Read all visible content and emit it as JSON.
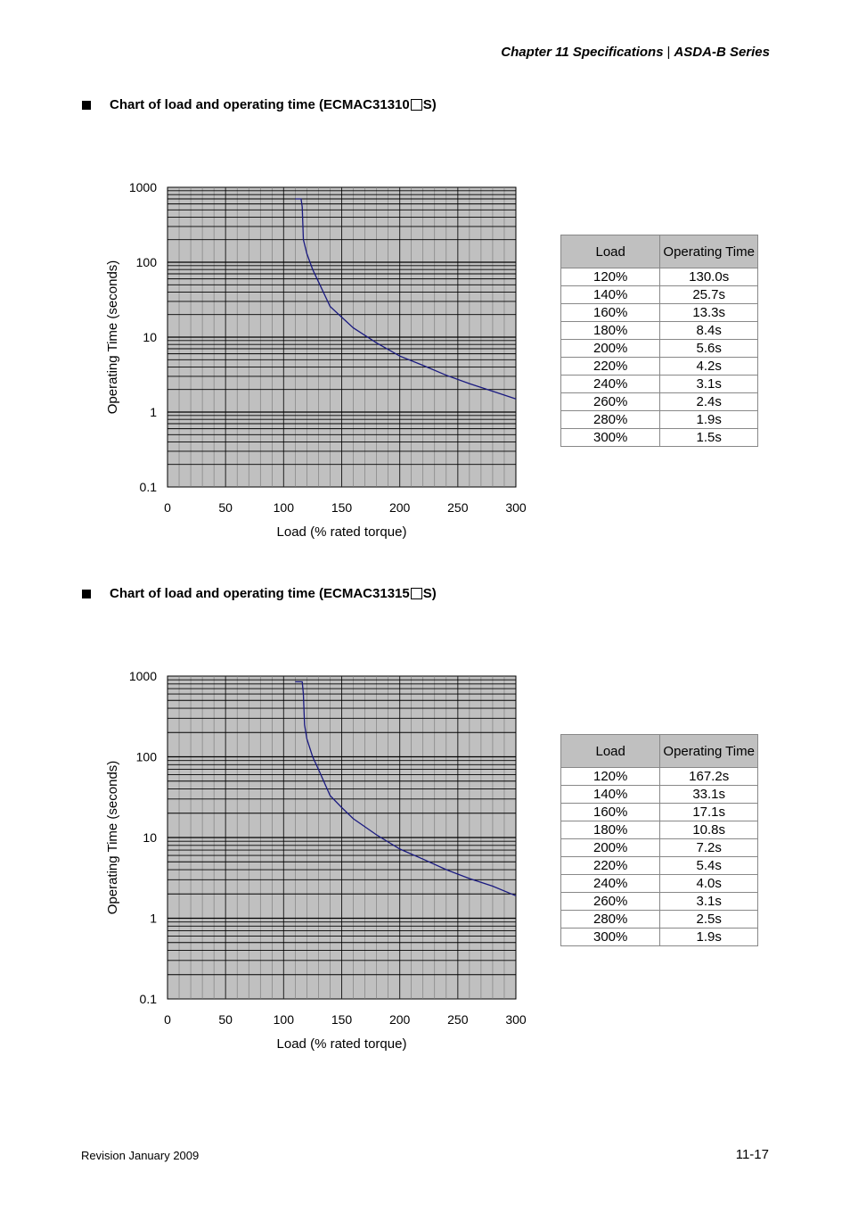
{
  "header": {
    "chapter": "Chapter 11  Specifications",
    "series": "ASDA-B Series"
  },
  "sections": [
    {
      "title_prefix": "Chart of load and operating time (ECMAC31310",
      "title_suffix": "S)",
      "table": {
        "headers": [
          "Load",
          "Operating Time"
        ],
        "rows": [
          [
            "120%",
            "130.0s"
          ],
          [
            "140%",
            "25.7s"
          ],
          [
            "160%",
            "13.3s"
          ],
          [
            "180%",
            "8.4s"
          ],
          [
            "200%",
            "5.6s"
          ],
          [
            "220%",
            "4.2s"
          ],
          [
            "240%",
            "3.1s"
          ],
          [
            "260%",
            "2.4s"
          ],
          [
            "280%",
            "1.9s"
          ],
          [
            "300%",
            "1.5s"
          ]
        ]
      }
    },
    {
      "title_prefix": "Chart of load and operating time (ECMAC31315",
      "title_suffix": "S)",
      "table": {
        "headers": [
          "Load",
          "Operating Time"
        ],
        "rows": [
          [
            "120%",
            "167.2s"
          ],
          [
            "140%",
            "33.1s"
          ],
          [
            "160%",
            "17.1s"
          ],
          [
            "180%",
            "10.8s"
          ],
          [
            "200%",
            "7.2s"
          ],
          [
            "220%",
            "5.4s"
          ],
          [
            "240%",
            "4.0s"
          ],
          [
            "260%",
            "3.1s"
          ],
          [
            "280%",
            "2.5s"
          ],
          [
            "300%",
            "1.9s"
          ]
        ]
      }
    }
  ],
  "chart_data": [
    {
      "type": "line",
      "xlabel": "Load (% rated torque)",
      "ylabel": "Operating Time (seconds)",
      "xlim": [
        0,
        300
      ],
      "ylim": [
        0.1,
        1000
      ],
      "yscale": "log",
      "xticks": [
        "0",
        "50",
        "100",
        "150",
        "200",
        "250",
        "300"
      ],
      "yticks": [
        "0.1",
        "1",
        "10",
        "100",
        "1000"
      ],
      "grid": true,
      "background": "#c0c0c0",
      "line_color": "#1a1a80",
      "series": [
        {
          "x": [
            110,
            115,
            116,
            117,
            120,
            125,
            130,
            140,
            150,
            160,
            180,
            200,
            220,
            240,
            260,
            280,
            300
          ],
          "y": [
            700,
            700,
            550,
            200,
            130,
            80,
            55,
            25.7,
            18.5,
            13.3,
            8.4,
            5.6,
            4.2,
            3.1,
            2.4,
            1.9,
            1.5
          ]
        }
      ]
    },
    {
      "type": "line",
      "xlabel": "Load (% rated torque)",
      "ylabel": "Operating Time (seconds)",
      "xlim": [
        0,
        300
      ],
      "ylim": [
        0.1,
        1000
      ],
      "yscale": "log",
      "xticks": [
        "0",
        "50",
        "100",
        "150",
        "200",
        "250",
        "300"
      ],
      "yticks": [
        "0.1",
        "1",
        "10",
        "100",
        "1000"
      ],
      "grid": true,
      "background": "#c0c0c0",
      "line_color": "#1a1a80",
      "series": [
        {
          "x": [
            110,
            116,
            117,
            118,
            120,
            125,
            130,
            140,
            150,
            160,
            180,
            200,
            220,
            240,
            260,
            280,
            300
          ],
          "y": [
            850,
            850,
            600,
            250,
            167.2,
            100,
            70,
            33.1,
            23.5,
            17.1,
            10.8,
            7.2,
            5.4,
            4.0,
            3.1,
            2.5,
            1.9
          ]
        }
      ]
    }
  ],
  "footer": {
    "revision": "Revision January 2009",
    "page": "11-17"
  }
}
